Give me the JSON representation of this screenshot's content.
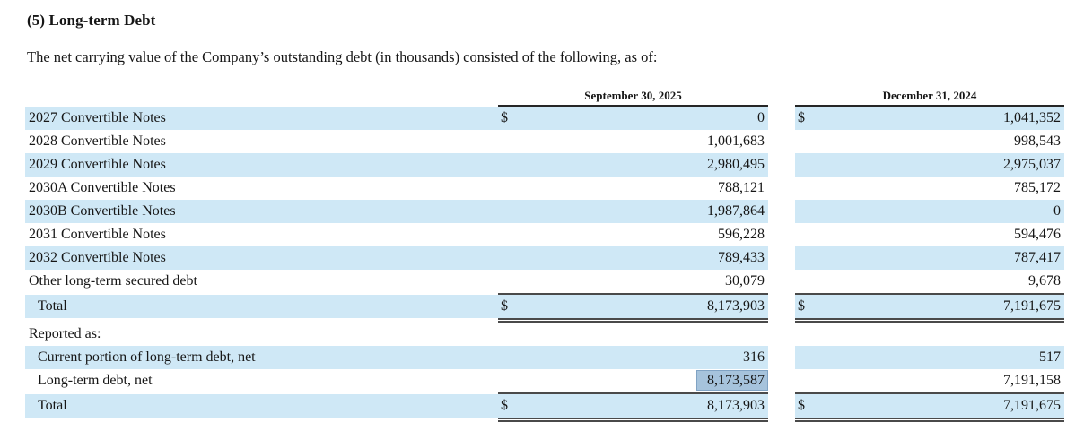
{
  "title": "(5) Long-term Debt",
  "subtitle": "The net carrying value of the Company’s outstanding debt (in thousands) consisted of the following, as of:",
  "table": {
    "columns": [
      "September 30, 2025",
      "December 31, 2024"
    ],
    "rows": [
      {
        "label": "2027 Convertible Notes",
        "d1": "$",
        "v1": "0",
        "d2": "$",
        "v2": "1,041,352",
        "shade": true
      },
      {
        "label": "2028 Convertible Notes",
        "v1": "1,001,683",
        "v2": "998,543"
      },
      {
        "label": "2029 Convertible Notes",
        "v1": "2,980,495",
        "v2": "2,975,037",
        "shade": true
      },
      {
        "label": "2030A Convertible Notes",
        "v1": "788,121",
        "v2": "785,172"
      },
      {
        "label": "2030B Convertible Notes",
        "v1": "1,987,864",
        "v2": "0",
        "shade": true
      },
      {
        "label": "2031 Convertible Notes",
        "v1": "596,228",
        "v2": "594,476"
      },
      {
        "label": "2032 Convertible Notes",
        "v1": "789,433",
        "v2": "787,417",
        "shade": true
      },
      {
        "label": "Other long-term secured debt",
        "v1": "30,079",
        "v2": "9,678"
      },
      {
        "label": "Total",
        "d1": "$",
        "v1": "8,173,903",
        "d2": "$",
        "v2": "7,191,675",
        "shade": true,
        "indent": true,
        "total": true
      },
      {
        "label": "Reported as:"
      },
      {
        "label": "Current portion of long-term debt, net",
        "v1": "316",
        "v2": "517",
        "shade": true,
        "indent": true
      },
      {
        "label": "Long-term debt, net",
        "v1": "8,173,587",
        "v2": "7,191,158",
        "indent": true,
        "highlight_v1": true
      },
      {
        "label": "Total",
        "d1": "$",
        "v1": "8,173,903",
        "d2": "$",
        "v2": "7,191,675",
        "shade": true,
        "indent": true,
        "total": true
      }
    ]
  },
  "colors": {
    "stripe": "#cfe8f6",
    "highlight": "#a6c3dc",
    "rule": "#4a4a4a",
    "header_rule": "#262626"
  }
}
